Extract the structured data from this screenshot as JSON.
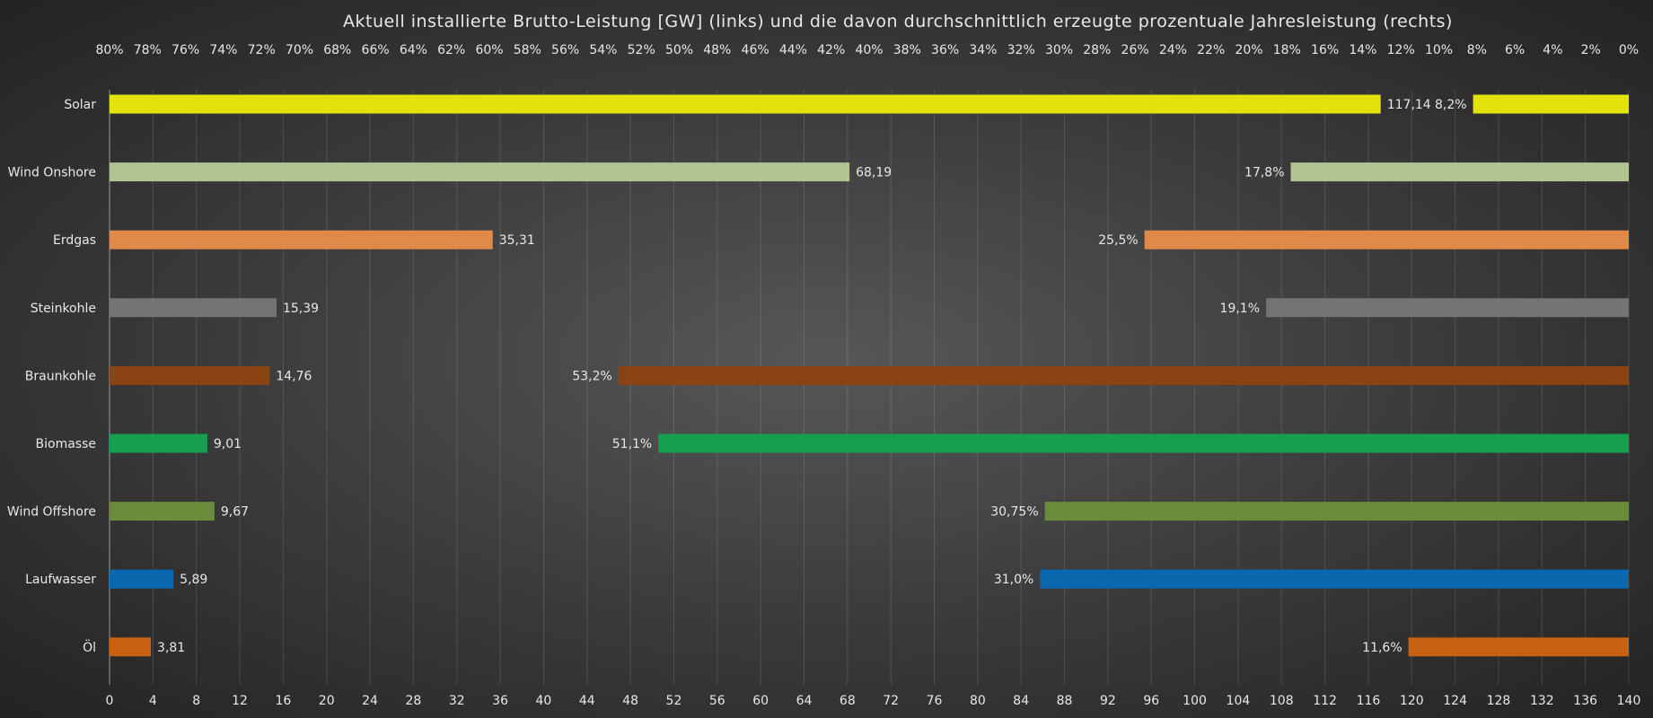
{
  "chart_data": {
    "type": "bar",
    "title": "Aktuell installierte Brutto-Leistung [GW] (links) und die davon durchschnittlich erzeugte prozentuale Jahresleistung (rechts)",
    "categories": [
      "Solar",
      "Wind Onshore",
      "Erdgas",
      "Steinkohle",
      "Braunkohle",
      "Biomasse",
      "Wind Offshore",
      "Laufwasser",
      "Öl"
    ],
    "series": [
      {
        "name": "Brutto-Leistung [GW]",
        "values": [
          117.14,
          68.19,
          35.31,
          15.39,
          14.76,
          9.01,
          9.67,
          5.89,
          3.81
        ],
        "labels": [
          "117,14",
          "68,19",
          "35,31",
          "15,39",
          "14,76",
          "9,01",
          "9,67",
          "5,89",
          "3,81"
        ]
      },
      {
        "name": "Jahresleistung [%]",
        "values": [
          8.2,
          17.8,
          25.5,
          19.1,
          53.2,
          51.1,
          30.75,
          31.0,
          11.6
        ],
        "labels": [
          "8,2%",
          "17,8%",
          "25,5%",
          "19,1%",
          "53,2%",
          "51,1%",
          "30,75%",
          "31,0%",
          "11,6%"
        ]
      }
    ],
    "colors": [
      "#e2e30a",
      "#b1c490",
      "#e08a4a",
      "#747474",
      "#8a4413",
      "#15a04f",
      "#6b8a3b",
      "#0b67ae",
      "#c96113"
    ],
    "x_bottom": {
      "range": [
        0,
        140
      ],
      "ticks": [
        "0",
        "4",
        "8",
        "12",
        "16",
        "20",
        "24",
        "28",
        "32",
        "36",
        "40",
        "44",
        "48",
        "52",
        "56",
        "60",
        "64",
        "68",
        "72",
        "76",
        "80",
        "84",
        "88",
        "92",
        "96",
        "100",
        "104",
        "108",
        "112",
        "116",
        "120",
        "124",
        "128",
        "132",
        "136",
        "140"
      ]
    },
    "x_top": {
      "range": [
        80,
        0
      ],
      "ticks": [
        "80%",
        "78%",
        "76%",
        "74%",
        "72%",
        "70%",
        "68%",
        "66%",
        "64%",
        "62%",
        "60%",
        "58%",
        "56%",
        "54%",
        "52%",
        "50%",
        "48%",
        "46%",
        "44%",
        "42%",
        "40%",
        "38%",
        "36%",
        "34%",
        "32%",
        "30%",
        "28%",
        "26%",
        "24%",
        "22%",
        "20%",
        "18%",
        "16%",
        "14%",
        "12%",
        "10%",
        "8%",
        "6%",
        "4%",
        "2%",
        "0%"
      ]
    },
    "grid": true
  }
}
